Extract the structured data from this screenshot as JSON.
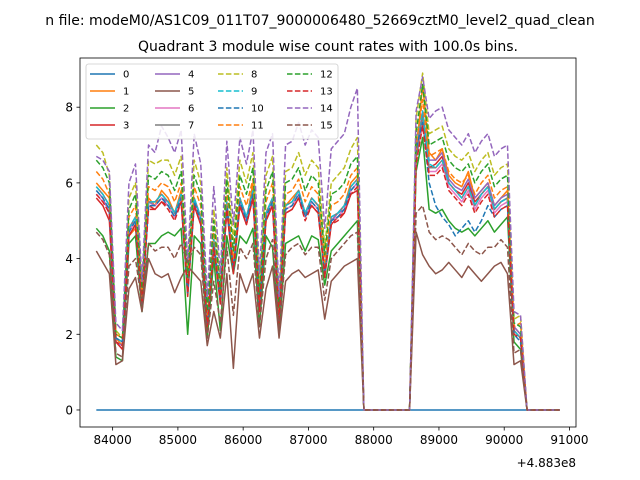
{
  "chart_data": {
    "type": "line",
    "suptitle": "n file: modeM0/AS1C09_011T07_9000006480_52669cztM0_level2_quad_clean",
    "title": "Quadrant 3 module wise count rates with 100.0s bins.",
    "xlabel": "",
    "ylabel": "",
    "x_offset_label": "+4.883e8",
    "xlim": [
      83500,
      91100
    ],
    "ylim": [
      -0.45,
      9.3
    ],
    "xticks": [
      84000,
      85000,
      86000,
      87000,
      88000,
      89000,
      90000,
      91000
    ],
    "xtick_labels": [
      "84000",
      "85000",
      "86000",
      "87000",
      "88000",
      "89000",
      "90000",
      "91000"
    ],
    "yticks": [
      0,
      2,
      4,
      6,
      8
    ],
    "ytick_labels": [
      "0",
      "2",
      "4",
      "6",
      "8"
    ],
    "grid": false,
    "legend_placement": "top-left",
    "x_start": 83750,
    "x_step": 100,
    "series": [
      {
        "name": "0",
        "color": "#1f77b4",
        "dashed": false,
        "values": [
          0,
          0,
          0,
          0,
          0,
          0,
          0,
          0,
          0,
          0,
          0,
          0,
          0,
          0,
          0,
          0,
          0,
          0,
          0,
          0,
          0,
          0,
          0,
          0,
          0,
          0,
          0,
          0,
          0,
          0,
          0,
          0,
          0,
          0,
          0,
          0,
          0,
          0,
          0,
          0,
          0,
          0,
          0,
          0,
          0,
          0,
          0,
          0,
          0,
          0,
          0,
          0,
          0,
          0,
          0,
          0,
          0,
          0,
          0,
          0,
          0,
          0,
          0,
          0,
          0,
          0,
          0,
          0,
          0,
          0,
          0,
          0
        ]
      },
      {
        "name": "1",
        "color": "#ff7f0e",
        "dashed": false,
        "values": [
          6.0,
          5.8,
          5.6,
          1.9,
          1.7,
          4.6,
          4.8,
          2.7,
          5.6,
          5.4,
          5.8,
          5.6,
          5.2,
          5.8,
          3.1,
          5.6,
          5.0,
          2.4,
          4.4,
          2.9,
          5.4,
          3.8,
          5.6,
          5.0,
          6.0,
          2.8,
          5.2,
          5.6,
          2.4,
          5.4,
          5.6,
          5.8,
          5.2,
          5.6,
          5.4,
          3.7,
          5.0,
          5.2,
          5.4,
          6.0,
          6.2,
          0,
          0,
          0,
          0,
          0,
          0,
          0,
          0,
          6.7,
          8.6,
          6.8,
          6.6,
          6.9,
          6.2,
          6.0,
          5.9,
          6.3,
          5.6,
          5.8,
          6.0,
          5.4,
          5.6,
          5.8,
          2.2,
          2.0,
          0,
          0,
          0,
          0,
          0,
          0
        ]
      },
      {
        "name": "2",
        "color": "#2ca02c",
        "dashed": false,
        "values": [
          4.8,
          4.6,
          4.2,
          1.4,
          1.3,
          4.4,
          4.6,
          2.6,
          4.4,
          4.4,
          4.6,
          4.7,
          4.6,
          4.8,
          2.0,
          4.6,
          4.4,
          1.9,
          4.0,
          2.1,
          4.6,
          3.6,
          4.6,
          4.4,
          4.8,
          2.2,
          4.6,
          4.3,
          2.0,
          4.4,
          4.5,
          4.6,
          4.2,
          4.6,
          4.5,
          3.3,
          4.2,
          4.4,
          4.6,
          4.8,
          5.0,
          0,
          0,
          0,
          0,
          0,
          0,
          0,
          0,
          6.3,
          7.2,
          5.3,
          5.2,
          5.3,
          5.0,
          4.8,
          4.7,
          4.8,
          4.6,
          4.8,
          5.0,
          4.7,
          4.9,
          5.1,
          1.8,
          1.6,
          0,
          0,
          0,
          0,
          0,
          0
        ]
      },
      {
        "name": "3",
        "color": "#d62728",
        "dashed": false,
        "values": [
          5.6,
          5.4,
          5.0,
          1.8,
          1.6,
          4.6,
          4.9,
          2.9,
          5.4,
          5.3,
          5.5,
          5.4,
          5.1,
          5.5,
          3.0,
          5.4,
          4.9,
          2.2,
          4.3,
          2.8,
          5.3,
          3.6,
          5.4,
          4.9,
          5.6,
          2.6,
          5.0,
          5.4,
          2.3,
          5.2,
          5.3,
          5.6,
          5.1,
          5.4,
          5.2,
          3.5,
          4.9,
          5.1,
          5.2,
          5.7,
          5.8,
          0,
          0,
          0,
          0,
          0,
          0,
          0,
          0,
          6.6,
          7.6,
          6.4,
          6.5,
          6.7,
          6.0,
          5.8,
          5.7,
          6.0,
          5.5,
          5.7,
          5.9,
          5.3,
          5.5,
          5.6,
          2.1,
          1.9,
          0,
          0,
          0,
          0,
          0,
          0
        ]
      },
      {
        "name": "4",
        "color": "#9467bd",
        "dashed": false,
        "values": [
          5.8,
          5.6,
          5.2,
          1.8,
          1.7,
          4.8,
          5.0,
          2.8,
          5.5,
          5.4,
          5.6,
          5.5,
          5.2,
          5.6,
          3.1,
          5.5,
          5.0,
          2.3,
          4.4,
          2.9,
          5.4,
          3.7,
          5.5,
          5.0,
          5.7,
          2.7,
          5.1,
          5.5,
          2.4,
          5.3,
          5.4,
          5.7,
          5.2,
          5.5,
          5.3,
          3.6,
          5.0,
          5.2,
          5.3,
          5.8,
          6.0,
          0,
          0,
          0,
          0,
          0,
          0,
          0,
          0,
          6.8,
          7.9,
          6.6,
          6.6,
          6.8,
          6.1,
          5.9,
          5.8,
          6.1,
          5.6,
          5.8,
          6.0,
          5.4,
          5.6,
          5.7,
          2.2,
          2.0,
          0,
          0,
          0,
          0,
          0,
          0
        ]
      },
      {
        "name": "5",
        "color": "#8c564b",
        "dashed": false,
        "values": [
          4.2,
          3.9,
          3.6,
          1.2,
          1.3,
          3.2,
          3.5,
          2.6,
          4.0,
          3.6,
          3.5,
          3.6,
          3.1,
          3.5,
          3.8,
          3.6,
          3.4,
          1.7,
          2.6,
          1.9,
          3.6,
          1.1,
          3.6,
          3.1,
          3.6,
          1.9,
          3.2,
          3.8,
          1.9,
          3.4,
          3.6,
          3.7,
          3.5,
          3.6,
          3.7,
          2.4,
          3.4,
          3.6,
          3.8,
          3.9,
          4.0,
          0,
          0,
          0,
          0,
          0,
          0,
          0,
          0,
          4.7,
          4.1,
          3.8,
          3.6,
          3.7,
          3.9,
          3.7,
          3.5,
          3.8,
          3.6,
          3.4,
          3.6,
          3.8,
          3.9,
          3.6,
          1.2,
          1.3,
          0,
          0,
          0,
          0,
          0,
          0
        ]
      },
      {
        "name": "6",
        "color": "#e377c2",
        "dashed": false,
        "values": [
          5.7,
          5.5,
          5.3,
          1.9,
          1.8,
          4.7,
          5.0,
          2.9,
          5.4,
          5.4,
          5.6,
          5.4,
          5.1,
          5.6,
          3.2,
          5.5,
          5.0,
          2.3,
          4.5,
          3.0,
          5.4,
          3.8,
          5.5,
          5.0,
          5.7,
          2.8,
          5.1,
          5.5,
          2.5,
          5.3,
          5.4,
          5.7,
          5.1,
          5.5,
          5.3,
          3.7,
          5.0,
          5.1,
          5.3,
          5.8,
          6.0,
          0,
          0,
          0,
          0,
          0,
          0,
          0,
          0,
          6.6,
          7.7,
          6.3,
          6.3,
          6.5,
          5.9,
          5.7,
          5.5,
          5.8,
          5.3,
          5.6,
          5.8,
          5.2,
          5.4,
          5.5,
          2.1,
          1.9,
          0,
          0,
          0,
          0,
          0,
          0
        ]
      },
      {
        "name": "7",
        "color": "#7f7f7f",
        "dashed": false,
        "values": [
          5.9,
          5.7,
          5.4,
          1.9,
          1.8,
          4.8,
          5.1,
          2.9,
          5.5,
          5.5,
          5.7,
          5.5,
          5.2,
          5.7,
          3.2,
          5.6,
          5.1,
          2.3,
          4.5,
          3.0,
          5.5,
          3.8,
          5.6,
          5.1,
          5.8,
          2.8,
          5.2,
          5.6,
          2.5,
          5.4,
          5.5,
          5.8,
          5.2,
          5.6,
          5.4,
          3.7,
          5.1,
          5.2,
          5.4,
          5.9,
          6.1,
          0,
          0,
          0,
          0,
          0,
          0,
          0,
          0,
          6.7,
          7.8,
          6.4,
          6.4,
          6.6,
          6.0,
          5.8,
          5.6,
          5.9,
          5.4,
          5.7,
          5.9,
          5.3,
          5.5,
          5.6,
          2.1,
          1.9,
          0,
          0,
          0,
          0,
          0,
          0
        ]
      },
      {
        "name": "8",
        "color": "#bcbd22",
        "dashed": true,
        "values": [
          7.0,
          6.8,
          6.2,
          2.1,
          1.9,
          5.6,
          6.0,
          3.2,
          6.6,
          6.5,
          6.6,
          6.6,
          6.2,
          6.7,
          3.7,
          6.6,
          6.0,
          2.7,
          5.3,
          3.4,
          6.4,
          4.5,
          6.6,
          6.0,
          6.8,
          3.2,
          6.2,
          6.7,
          2.8,
          6.3,
          6.4,
          6.8,
          6.2,
          6.6,
          6.4,
          4.3,
          6.0,
          6.2,
          6.4,
          6.9,
          7.2,
          0,
          0,
          0,
          0,
          0,
          0,
          0,
          0,
          7.7,
          8.9,
          7.3,
          7.4,
          7.5,
          6.9,
          6.7,
          6.6,
          6.8,
          6.3,
          6.6,
          6.8,
          6.2,
          6.4,
          6.5,
          2.4,
          2.5,
          0,
          0,
          0,
          0,
          0,
          0
        ]
      },
      {
        "name": "9",
        "color": "#17becf",
        "dashed": true,
        "values": [
          5.9,
          5.7,
          5.4,
          1.9,
          1.8,
          4.8,
          5.1,
          2.9,
          5.5,
          5.5,
          5.7,
          5.5,
          5.2,
          5.7,
          3.2,
          5.6,
          5.1,
          2.3,
          4.5,
          3.0,
          5.5,
          3.8,
          5.6,
          5.1,
          5.8,
          2.8,
          5.2,
          5.6,
          2.5,
          5.4,
          5.5,
          5.8,
          5.2,
          5.6,
          5.4,
          3.7,
          5.1,
          5.2,
          5.4,
          5.9,
          6.1,
          0,
          0,
          0,
          0,
          0,
          0,
          0,
          0,
          7.1,
          7.9,
          6.5,
          6.4,
          6.6,
          6.0,
          5.8,
          5.6,
          5.9,
          5.4,
          5.7,
          5.9,
          5.3,
          5.5,
          5.6,
          2.1,
          1.9,
          0,
          0,
          0,
          0,
          0,
          0
        ]
      },
      {
        "name": "10",
        "color": "#1f77b4",
        "dashed": true,
        "values": [
          5.8,
          5.6,
          5.3,
          1.9,
          1.8,
          4.7,
          5.0,
          2.8,
          5.4,
          5.4,
          5.6,
          5.4,
          5.1,
          5.6,
          3.1,
          5.5,
          5.0,
          2.3,
          4.4,
          2.9,
          5.4,
          3.7,
          5.5,
          5.0,
          5.7,
          2.7,
          5.1,
          5.5,
          2.4,
          5.3,
          5.4,
          5.7,
          5.1,
          5.5,
          5.3,
          3.6,
          5.0,
          5.1,
          5.3,
          5.8,
          6.0,
          0,
          0,
          0,
          0,
          0,
          0,
          0,
          0,
          6.9,
          7.6,
          6.0,
          5.4,
          5.1,
          4.9,
          4.6,
          4.8,
          5.0,
          4.7,
          5.0,
          5.4,
          5.1,
          5.3,
          5.4,
          2.0,
          1.8,
          0,
          0,
          0,
          0,
          0,
          0
        ]
      },
      {
        "name": "11",
        "color": "#ff7f0e",
        "dashed": true,
        "values": [
          6.3,
          6.1,
          5.7,
          2.0,
          1.9,
          5.1,
          5.4,
          3.0,
          5.9,
          5.8,
          6.0,
          5.9,
          5.5,
          6.0,
          3.4,
          5.9,
          5.4,
          2.5,
          4.8,
          3.1,
          5.8,
          4.0,
          5.9,
          5.4,
          6.1,
          2.9,
          5.5,
          6.0,
          2.6,
          5.7,
          5.8,
          6.1,
          5.5,
          5.9,
          5.7,
          3.9,
          5.4,
          5.5,
          5.7,
          6.2,
          6.4,
          0,
          0,
          0,
          0,
          0,
          0,
          0,
          0,
          7.0,
          8.2,
          6.7,
          6.8,
          6.9,
          6.3,
          6.1,
          6.0,
          6.2,
          5.7,
          6.0,
          6.2,
          5.6,
          5.8,
          5.9,
          2.2,
          2.3,
          0,
          0,
          0,
          0,
          0,
          0
        ]
      },
      {
        "name": "12",
        "color": "#2ca02c",
        "dashed": true,
        "values": [
          6.6,
          6.4,
          6.0,
          2.0,
          1.9,
          5.3,
          5.7,
          3.1,
          6.2,
          6.1,
          6.3,
          6.2,
          5.8,
          6.3,
          3.5,
          6.2,
          5.7,
          2.6,
          5.0,
          3.2,
          6.1,
          4.2,
          6.2,
          5.7,
          6.4,
          3.0,
          5.8,
          6.3,
          2.7,
          6.0,
          6.1,
          6.4,
          5.8,
          6.2,
          6.0,
          4.1,
          5.7,
          5.8,
          6.0,
          6.5,
          6.7,
          0,
          0,
          0,
          0,
          0,
          0,
          0,
          0,
          7.3,
          8.6,
          7.0,
          7.1,
          7.2,
          6.6,
          6.4,
          6.3,
          6.5,
          6.0,
          6.3,
          6.5,
          5.9,
          6.1,
          6.2,
          2.3,
          2.2,
          0,
          0,
          0,
          0,
          0,
          0
        ]
      },
      {
        "name": "13",
        "color": "#d62728",
        "dashed": true,
        "values": [
          5.7,
          5.5,
          5.2,
          1.8,
          1.7,
          4.6,
          4.9,
          2.8,
          5.3,
          5.3,
          5.5,
          5.3,
          5.0,
          5.5,
          3.1,
          5.4,
          4.9,
          2.2,
          4.3,
          2.9,
          5.3,
          3.7,
          5.4,
          4.9,
          5.6,
          2.7,
          5.0,
          5.4,
          2.4,
          5.2,
          5.3,
          5.6,
          5.0,
          5.4,
          5.2,
          3.6,
          4.9,
          5.0,
          5.2,
          5.7,
          5.9,
          0,
          0,
          0,
          0,
          0,
          0,
          0,
          0,
          6.5,
          7.5,
          6.2,
          6.2,
          6.4,
          5.8,
          5.6,
          5.4,
          5.7,
          5.2,
          5.5,
          5.7,
          5.1,
          5.3,
          5.4,
          2.0,
          1.9,
          0,
          0,
          0,
          0,
          0,
          0
        ]
      },
      {
        "name": "14",
        "color": "#9467bd",
        "dashed": true,
        "values": [
          6.7,
          6.6,
          6.3,
          2.3,
          2.1,
          6.0,
          6.5,
          3.4,
          7.0,
          6.8,
          7.5,
          7.2,
          6.8,
          7.4,
          3.9,
          7.3,
          6.5,
          3.0,
          5.9,
          3.6,
          7.1,
          4.9,
          7.2,
          6.5,
          7.4,
          3.6,
          6.8,
          7.3,
          3.0,
          7.0,
          7.1,
          7.6,
          7.0,
          7.4,
          7.2,
          4.8,
          6.9,
          7.1,
          7.3,
          8.0,
          8.5,
          0,
          0,
          0,
          0,
          0,
          0,
          0,
          0,
          7.9,
          8.8,
          7.7,
          7.9,
          8.0,
          7.4,
          7.2,
          7.0,
          7.3,
          6.8,
          7.1,
          7.3,
          6.7,
          6.9,
          7.0,
          2.6,
          2.5,
          0,
          0,
          0,
          0,
          0,
          0
        ]
      },
      {
        "name": "15",
        "color": "#8c564b",
        "dashed": true,
        "values": [
          4.7,
          4.5,
          4.1,
          1.5,
          1.4,
          3.8,
          4.0,
          2.8,
          4.4,
          4.2,
          4.3,
          4.3,
          4.0,
          4.4,
          3.9,
          4.3,
          4.1,
          1.9,
          3.4,
          2.3,
          4.3,
          2.5,
          4.3,
          4.0,
          4.4,
          2.2,
          4.0,
          4.5,
          2.1,
          4.1,
          4.3,
          4.4,
          4.1,
          4.3,
          4.3,
          2.9,
          4.0,
          4.2,
          4.4,
          4.6,
          4.7,
          0,
          0,
          0,
          0,
          0,
          0,
          0,
          0,
          5.2,
          5.4,
          4.7,
          4.5,
          4.6,
          4.5,
          4.3,
          4.1,
          4.4,
          4.2,
          4.1,
          4.3,
          4.3,
          4.5,
          4.3,
          1.5,
          1.6,
          0,
          0,
          0,
          0,
          0,
          0
        ]
      }
    ]
  }
}
